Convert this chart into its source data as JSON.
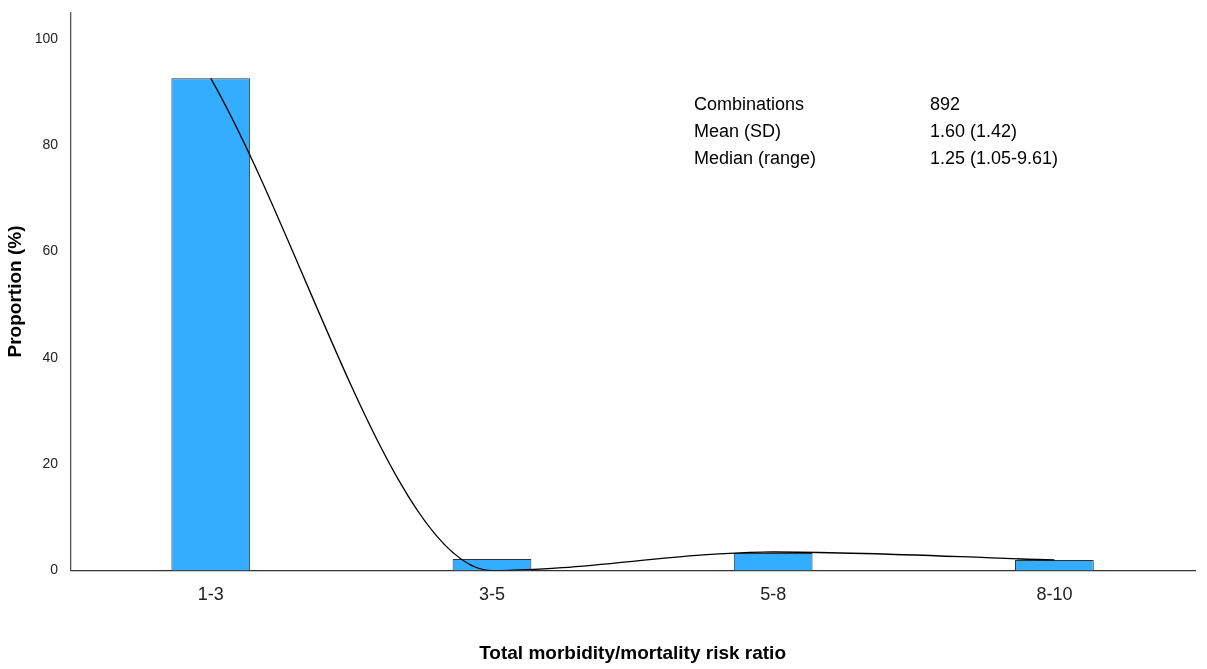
{
  "chart_data": {
    "type": "bar",
    "xlabel": "Total morbidity/mortality risk ratio",
    "ylabel": "Proportion (%)",
    "categories": [
      "1-3",
      "3-5",
      "5-8",
      "8-10"
    ],
    "series": [
      {
        "color": "#33adff",
        "values": [
          92.6,
          2.2,
          3.3,
          2.0
        ]
      },
      {
        "type": "line",
        "color": "#000000",
        "values": [
          92.6,
          0,
          3.5,
          2.0
        ]
      }
    ],
    "ylim": [
      0,
      105
    ],
    "yticks": [
      0,
      20,
      40,
      60,
      80,
      100
    ],
    "grid": false,
    "legend": false,
    "marker": "none",
    "annotations": [
      "Combinations",
      "892",
      "Mean (SD)",
      "1.60 (1.42)",
      "Median (range)",
      "1.25 (1.05-9.61)"
    ]
  }
}
